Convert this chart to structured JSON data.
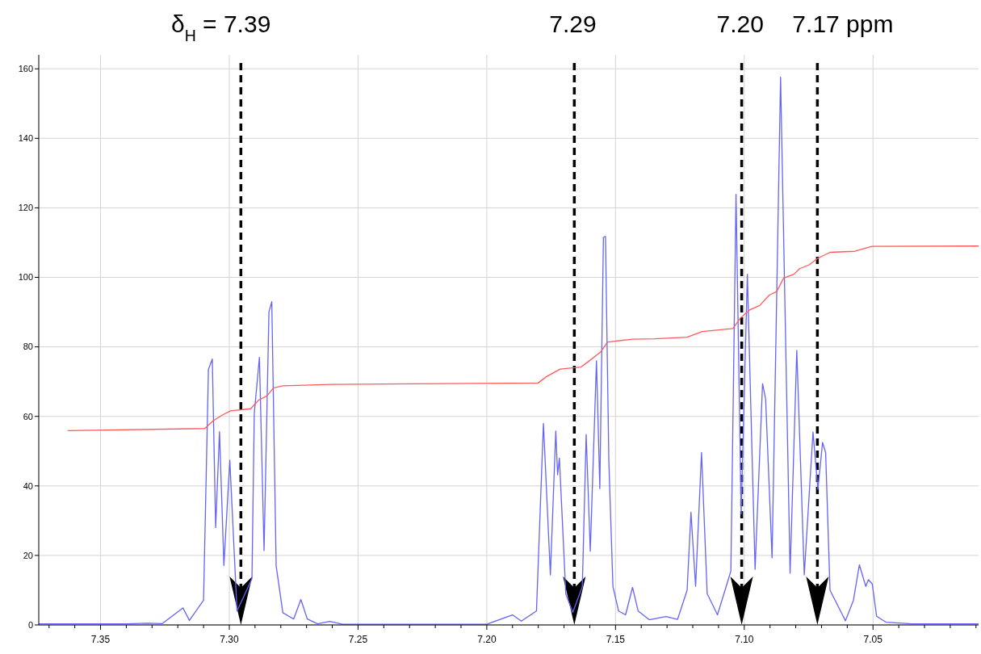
{
  "chart_data": {
    "type": "line",
    "xlim": [
      7.374,
      7.009
    ],
    "ylim": [
      0,
      164
    ],
    "xticks": [
      {
        "value": 7.37,
        "label": null
      },
      {
        "value": 7.36,
        "label": null
      },
      {
        "value": 7.35,
        "label": "7.35"
      },
      {
        "value": 7.34,
        "label": null
      },
      {
        "value": 7.33,
        "label": null
      },
      {
        "value": 7.32,
        "label": null
      },
      {
        "value": 7.31,
        "label": null
      },
      {
        "value": 7.3,
        "label": "7.30"
      },
      {
        "value": 7.29,
        "label": null
      },
      {
        "value": 7.28,
        "label": null
      },
      {
        "value": 7.27,
        "label": null
      },
      {
        "value": 7.26,
        "label": null
      },
      {
        "value": 7.25,
        "label": "7.25"
      },
      {
        "value": 7.24,
        "label": null
      },
      {
        "value": 7.23,
        "label": null
      },
      {
        "value": 7.22,
        "label": null
      },
      {
        "value": 7.21,
        "label": null
      },
      {
        "value": 7.2,
        "label": "7.20"
      },
      {
        "value": 7.19,
        "label": null
      },
      {
        "value": 7.18,
        "label": null
      },
      {
        "value": 7.17,
        "label": null
      },
      {
        "value": 7.16,
        "label": null
      },
      {
        "value": 7.15,
        "label": "7.15"
      },
      {
        "value": 7.14,
        "label": null
      },
      {
        "value": 7.13,
        "label": null
      },
      {
        "value": 7.12,
        "label": null
      },
      {
        "value": 7.11,
        "label": null
      },
      {
        "value": 7.1,
        "label": "7.10"
      },
      {
        "value": 7.09,
        "label": null
      },
      {
        "value": 7.08,
        "label": null
      },
      {
        "value": 7.07,
        "label": null
      },
      {
        "value": 7.06,
        "label": null
      },
      {
        "value": 7.05,
        "label": "7.05"
      },
      {
        "value": 7.04,
        "label": null
      },
      {
        "value": 7.03,
        "label": null
      },
      {
        "value": 7.02,
        "label": null
      },
      {
        "value": 7.01,
        "label": null
      }
    ],
    "yticks": [
      0,
      20,
      40,
      60,
      80,
      100,
      120,
      140,
      160
    ],
    "grid": true,
    "line_style": "solid",
    "series": [
      {
        "color": "#6464f8",
        "x": [
          7.374,
          7.34,
          7.332,
          7.326,
          7.318,
          7.3155,
          7.31,
          7.3081,
          7.3066,
          7.3053,
          7.3038,
          7.3021,
          7.2998,
          7.297,
          7.2912,
          7.2903,
          7.2883,
          7.2865,
          7.2846,
          7.2835,
          7.2818,
          7.2792,
          7.275,
          7.2722,
          7.2697,
          7.2657,
          7.261,
          7.256,
          7.2,
          7.19,
          7.1866,
          7.1807,
          7.178,
          7.1753,
          7.1732,
          7.1725,
          7.1718,
          7.1693,
          7.1666,
          7.1629,
          7.1614,
          7.1598,
          7.1574,
          7.1561,
          7.1547,
          7.1539,
          7.1526,
          7.151,
          7.1488,
          7.1461,
          7.1434,
          7.1412,
          7.1369,
          7.1304,
          7.1259,
          7.1222,
          7.1207,
          7.1189,
          7.1166,
          7.1144,
          7.1104,
          7.1052,
          7.1032,
          7.1012,
          7.0988,
          7.0958,
          7.0929,
          7.0917,
          7.0892,
          7.0859,
          7.0822,
          7.0796,
          7.0767,
          7.0733,
          7.0714,
          7.0696,
          7.0684,
          7.0667,
          7.0607,
          7.0576,
          7.0553,
          7.0528,
          7.0518,
          7.0503,
          7.0486,
          7.045,
          7.035,
          7.009
        ],
        "values": [
          0.3,
          0.3,
          0.5,
          0.4,
          4.9,
          1.3,
          7.1,
          73.5,
          76.5,
          28,
          55.6,
          17.1,
          47.4,
          4,
          13.3,
          60.8,
          77,
          21.4,
          90.1,
          93,
          17,
          3.5,
          1.7,
          7.3,
          1.7,
          0.3,
          1,
          0.2,
          0.2,
          2.9,
          1.1,
          4,
          58,
          14.4,
          55.8,
          43.2,
          48,
          8.8,
          3.6,
          11,
          54.8,
          21.2,
          76,
          39.2,
          111.5,
          111.8,
          47.2,
          11,
          4,
          2.9,
          10.8,
          4,
          1.5,
          2.4,
          1.6,
          10,
          32.4,
          11.1,
          49.6,
          9,
          2.9,
          15.5,
          123.9,
          31.9,
          100.9,
          16,
          69.4,
          65,
          19.3,
          157.6,
          14.9,
          79,
          14.4,
          55.5,
          39,
          52.5,
          49.6,
          10,
          1.2,
          7.1,
          17.3,
          11.1,
          13,
          11.8,
          2.5,
          0.8,
          0.3,
          0.3
        ]
      },
      {
        "color": "#ff5a5a",
        "x": [
          7.3628,
          7.3095,
          7.3063,
          7.3027,
          7.2995,
          7.2917,
          7.2886,
          7.2854,
          7.2828,
          7.2792,
          7.2603,
          7.1801,
          7.1769,
          7.1715,
          7.1634,
          7.1607,
          7.1558,
          7.1531,
          7.1434,
          7.1349,
          7.1222,
          7.1163,
          7.1044,
          7.1015,
          7.0978,
          7.094,
          7.0903,
          7.0874,
          7.0847,
          7.0807,
          7.0785,
          7.0748,
          7.0714,
          7.0667,
          7.0571,
          7.0504,
          7.009
        ],
        "values": [
          55.9,
          56.5,
          58.7,
          60.4,
          61.6,
          62.2,
          64.7,
          65.9,
          68.2,
          68.8,
          69.2,
          69.6,
          71.4,
          73.6,
          74.2,
          75.7,
          78.5,
          81.4,
          82.2,
          82.3,
          82.8,
          84.4,
          85.3,
          88.3,
          90.7,
          91.9,
          94.9,
          95.9,
          99.8,
          100.9,
          102.5,
          103.6,
          105.5,
          107.2,
          107.5,
          108.9,
          109
        ]
      }
    ],
    "ref_lines": [
      {
        "axis": "x",
        "value": 7.2955,
        "color": "#000000",
        "line_style": "dashed"
      },
      {
        "axis": "x",
        "value": 7.166,
        "color": "#000000",
        "line_style": "dashed"
      },
      {
        "axis": "x",
        "value": 7.101,
        "color": "#000000",
        "line_style": "dashed"
      },
      {
        "axis": "x",
        "value": 7.0716,
        "color": "#000000",
        "line_style": "dashed"
      }
    ],
    "annotations": [
      "δ$_{H}$ = 7.39",
      "7.29",
      "7.20",
      "7.17 ppm"
    ]
  }
}
